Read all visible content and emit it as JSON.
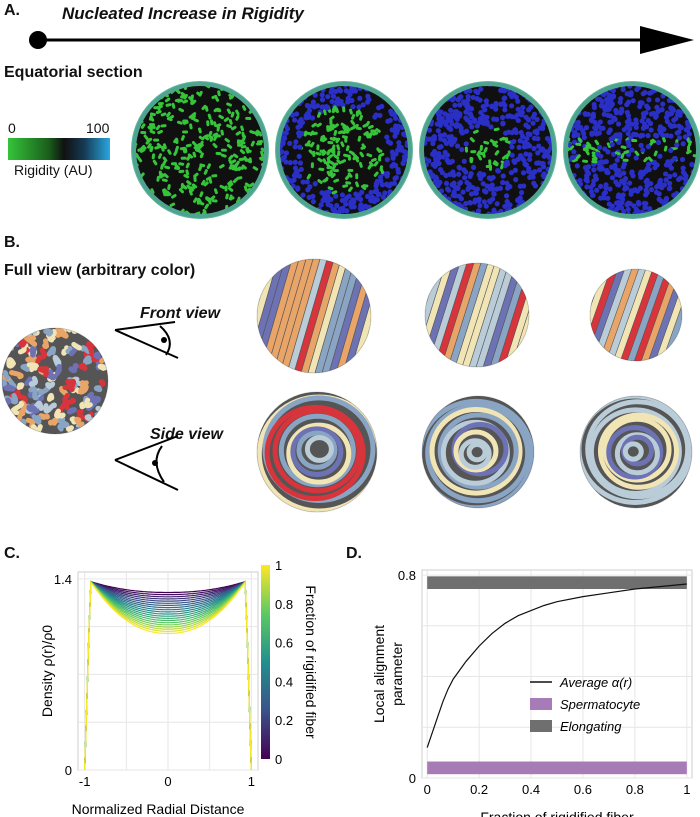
{
  "panel_a": {
    "letter": "A.",
    "arrow_title": "Nucleated Increase in Rigidity",
    "section_title": "Equatorial section",
    "colorbar": {
      "min_label": "0",
      "max_label": "100",
      "label": "Rigidity (AU)",
      "colors": [
        "#35c43a",
        "#111111",
        "#2aa7e0"
      ]
    },
    "sections": [
      {
        "name": "equatorial-section-1",
        "rigid_fraction": 0.0
      },
      {
        "name": "equatorial-section-2",
        "rigid_fraction": 0.33
      },
      {
        "name": "equatorial-section-3",
        "rigid_fraction": 0.66
      },
      {
        "name": "equatorial-section-4",
        "rigid_fraction": 1.0
      }
    ]
  },
  "panel_b": {
    "letter": "B.",
    "full_view_title": "Full view (arbitrary color)",
    "front_view_label": "Front view",
    "side_view_label": "Side view",
    "fiber_colors": [
      "#d7343c",
      "#e9a468",
      "#f1e5b5",
      "#b9ccd8",
      "#6c72b3",
      "#8aa5c4"
    ]
  },
  "panel_c": {
    "letter": "C.",
    "chart_data": {
      "type": "line",
      "title": "",
      "xlabel": "Normalized Radial Distance",
      "ylabel": "Density ρ(r)/ρ0",
      "xlim": [
        -1.08,
        1.08
      ],
      "ylim": [
        0,
        1.45
      ],
      "x_ticks": [
        "-1",
        "0",
        "1"
      ],
      "y_ticks": [
        "0",
        "1.4"
      ],
      "colorbar_label": "Fraction of rigidified fiber",
      "colorbar_ticks": [
        "0",
        "0.2",
        "0.4",
        "0.6",
        "0.8",
        "1"
      ],
      "colormap": [
        "#440154",
        "#3b528b",
        "#21908d",
        "#5dc962",
        "#fde725"
      ],
      "series_count": 20,
      "center_density_range": [
        1.0,
        1.3
      ],
      "peak_density": 1.38,
      "grid": true
    }
  },
  "panel_d": {
    "letter": "D.",
    "chart_data": {
      "type": "line",
      "title": "",
      "xlabel": "Fraction of rigidified fiber",
      "ylabel": "Local alignment parameter",
      "xlim": [
        -0.02,
        1.02
      ],
      "ylim": [
        0,
        0.82
      ],
      "x_ticks": [
        "0",
        "0.2",
        "0.4",
        "0.6",
        "0.8",
        "1"
      ],
      "y_ticks": [
        "0",
        "0.8"
      ],
      "legend_position": "center-right",
      "series": [
        {
          "name": "Average α(r)",
          "color": "#111111",
          "x": [
            0.0,
            0.02,
            0.04,
            0.06,
            0.08,
            0.1,
            0.15,
            0.2,
            0.25,
            0.3,
            0.35,
            0.4,
            0.45,
            0.5,
            0.6,
            0.7,
            0.8,
            0.9,
            1.0
          ],
          "y": [
            0.12,
            0.18,
            0.24,
            0.3,
            0.35,
            0.39,
            0.46,
            0.52,
            0.57,
            0.61,
            0.64,
            0.66,
            0.68,
            0.695,
            0.715,
            0.73,
            0.745,
            0.755,
            0.765
          ]
        },
        {
          "name": "Spermatocyte",
          "color": "#a77bb6",
          "value": 0.04
        },
        {
          "name": "Elongating",
          "color": "#6f6f6f",
          "value": 0.77
        }
      ],
      "grid": true
    }
  }
}
